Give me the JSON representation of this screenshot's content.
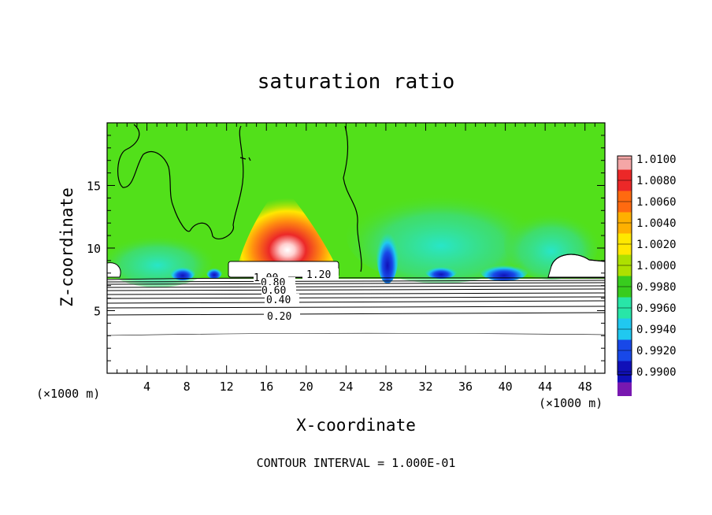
{
  "chart_data": {
    "type": "heatmap",
    "title": "saturation ratio",
    "xlabel": "X-coordinate",
    "ylabel": "Z-coordinate",
    "x_unit": "(×1000 m)",
    "xlim": [
      0,
      50
    ],
    "ylim": [
      0,
      20
    ],
    "x_ticks": [
      4,
      8,
      12,
      16,
      20,
      24,
      28,
      32,
      36,
      40,
      44,
      48
    ],
    "y_ticks": [
      5,
      10,
      15
    ],
    "footer": "CONTOUR INTERVAL = 1.000E-01",
    "colorbar": {
      "levels": [
        "1.0100",
        "1.0080",
        "1.0060",
        "1.0040",
        "1.0020",
        "1.0000",
        "0.9980",
        "0.9960",
        "0.9940",
        "0.9920",
        "0.9900"
      ],
      "colors": [
        "#f4a6a6",
        "#ec2828",
        "#ff6a10",
        "#ffb000",
        "#ffe800",
        "#aee000",
        "#38cc1e",
        "#28e6a8",
        "#20c8f0",
        "#1848e8",
        "#1010b8",
        "#7818b0"
      ]
    },
    "contour_labels": [
      "1.20",
      "1.00",
      "0.80",
      "0.60",
      "0.40",
      "0.20"
    ],
    "field_colors": {
      "background": "#52e01a",
      "supersaturated_core": "#ec2828",
      "peak": "#ffffff",
      "subsaturated": "#1848e8"
    }
  }
}
